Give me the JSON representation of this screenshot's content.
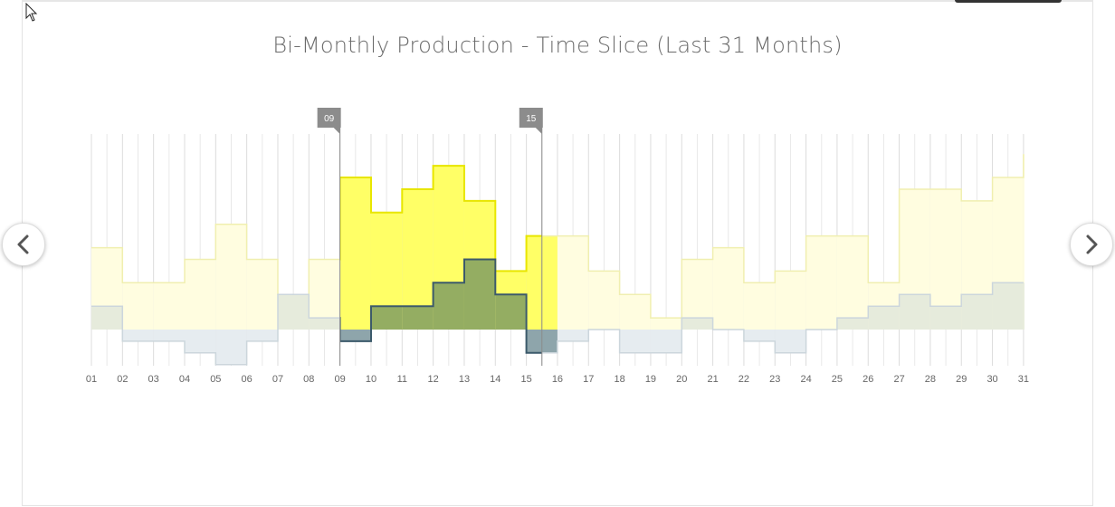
{
  "navigation": {
    "prev_icon": "chevron-left-icon",
    "next_icon": "chevron-right-icon"
  },
  "cursor_icon": "mouse-pointer-icon",
  "chart_data": {
    "type": "step-area",
    "title": "Bi-Monthly Production - Time Slice (Last 31 Months)",
    "categories": [
      "01",
      "02",
      "03",
      "04",
      "05",
      "06",
      "07",
      "08",
      "09",
      "10",
      "11",
      "12",
      "13",
      "14",
      "15",
      "16",
      "17",
      "18",
      "19",
      "20",
      "21",
      "22",
      "23",
      "24",
      "25",
      "26",
      "27",
      "28",
      "29",
      "30",
      "31"
    ],
    "series": [
      {
        "values": [
          7,
          4,
          4,
          6,
          9,
          6,
          3,
          6,
          13,
          10,
          12,
          14,
          11,
          5,
          8,
          8,
          5,
          3,
          1,
          6,
          7,
          4,
          5,
          8,
          8,
          4,
          12,
          12,
          11,
          13,
          15
        ],
        "color": "#ffff44"
      },
      {
        "values": [
          2,
          -1,
          -1,
          -2,
          -3,
          -1,
          3,
          1,
          -1,
          2,
          2,
          4,
          6,
          3,
          -2,
          -1,
          0,
          -2,
          -2,
          1,
          0,
          -1,
          -2,
          0,
          1,
          2,
          3,
          2,
          3,
          4,
          4
        ],
        "color": "#4f6d2a"
      }
    ],
    "highlight_range": {
      "start_label": "09",
      "end_label": "15",
      "colors": {
        "production_fill": "#ffff66",
        "production_stroke": "#e8e600",
        "second_fill": "#94ad62",
        "second_stroke": "#3c5a6b",
        "negative_fill": "#8ea5ab"
      }
    },
    "faded_colors": {
      "production_fill": "#fffde0",
      "production_stroke": "#f0efb0",
      "second_fill": "#e6ebdc",
      "second_stroke": "#cdd6c8",
      "negative_fill": "#e6ecf0",
      "negative_stroke": "#ccd6dc"
    },
    "grid": true,
    "legend": "none"
  }
}
